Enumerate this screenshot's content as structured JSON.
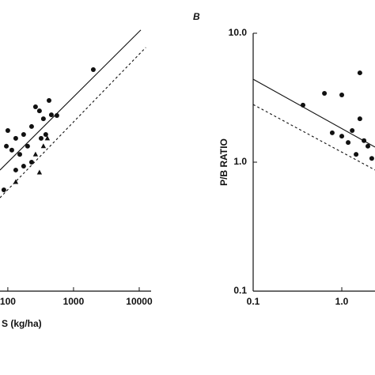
{
  "chart_data": [
    {
      "type": "scatter",
      "xlabel": "S (kg/ha)",
      "xscale": "log",
      "yscale": "log",
      "xlim": [
        76,
        15000
      ],
      "ylim": [
        1,
        100
      ],
      "xticks": [
        100,
        1000,
        10000
      ],
      "color": "#111111",
      "series": [
        {
          "marker": "circle",
          "x": [
            2000,
            424,
            460,
            264,
            303,
            348,
            558,
            230,
            174,
            132,
            100,
            95,
            115,
            152,
            200,
            321,
            378,
            230,
            132,
            87,
            174
          ],
          "y": [
            52.2,
            30.1,
            23.3,
            26.9,
            25.0,
            21.7,
            23.0,
            18.9,
            16.4,
            15.3,
            17.6,
            13.3,
            12.4,
            11.5,
            13.3,
            15.3,
            16.4,
            10.0,
            8.69,
            6.1,
            9.31
          ]
        },
        {
          "marker": "triangle",
          "x": [
            348,
            400,
            303,
            132,
            264
          ],
          "y": [
            13.3,
            15.3,
            8.32,
            7.03,
            11.5
          ]
        }
      ],
      "lines": [
        {
          "style": "solid",
          "x": [
            76,
            10570
          ],
          "y": [
            8.69,
            106
          ]
        },
        {
          "style": "dashed",
          "x": [
            76,
            12600
          ],
          "y": [
            5.3,
            77.6
          ]
        }
      ]
    },
    {
      "type": "scatter",
      "title": "B",
      "ylabel": "P/B RATIO",
      "xscale": "log",
      "yscale": "log",
      "xlim": [
        0.1,
        2.37
      ],
      "ylim": [
        0.1,
        10
      ],
      "xticks": [
        0.1,
        {
          "value": 1,
          "label": "1.0"
        }
      ],
      "yticks": [
        {
          "value": 10,
          "label": "10.0"
        },
        {
          "value": 1,
          "label": "1.0"
        },
        0.1
      ],
      "color": "#111111",
      "series": [
        {
          "marker": "circle",
          "x": [
            0.365,
            0.637,
            1.0,
            1.6,
            0.78,
            1.0,
            1.31,
            1.6,
            1.78,
            1.97,
            1.45,
            1.18,
            2.18
          ],
          "y": [
            2.77,
            3.42,
            3.32,
            4.93,
            1.69,
            1.59,
            1.76,
            2.17,
            1.47,
            1.33,
            1.15,
            1.42,
            1.07
          ]
        }
      ],
      "lines": [
        {
          "style": "solid",
          "x": [
            0.1,
            2.37
          ],
          "y": [
            4.4,
            1.31
          ]
        },
        {
          "style": "dashed",
          "x": [
            0.1,
            2.37
          ],
          "y": [
            2.8,
            0.87
          ]
        }
      ]
    }
  ]
}
